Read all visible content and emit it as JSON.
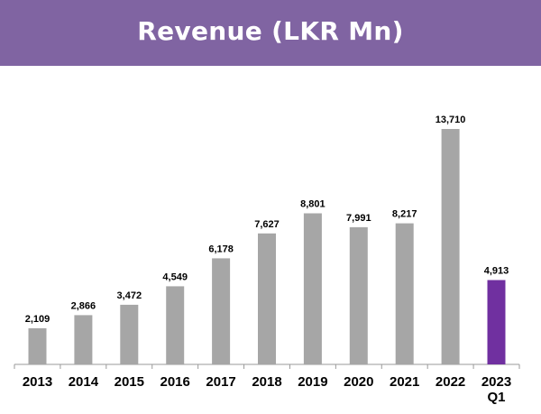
{
  "chart_data": {
    "type": "bar",
    "title": "Revenue (LKR Mn)",
    "categories": [
      [
        "2013"
      ],
      [
        "2014"
      ],
      [
        "2015"
      ],
      [
        "2016"
      ],
      [
        "2017"
      ],
      [
        "2018"
      ],
      [
        "2019"
      ],
      [
        "2020"
      ],
      [
        "2021"
      ],
      [
        "2022"
      ],
      [
        "2023",
        "Q1"
      ]
    ],
    "values": [
      2109,
      2866,
      3472,
      4549,
      6178,
      7627,
      8801,
      7991,
      8217,
      13710,
      4913
    ],
    "value_labels": [
      "2,109",
      "2,866",
      "3,472",
      "4,549",
      "6,178",
      "7,627",
      "8,801",
      "7,991",
      "8,217",
      "13,710",
      "4,913"
    ],
    "bar_colors": [
      "#a6a6a6",
      "#a6a6a6",
      "#a6a6a6",
      "#a6a6a6",
      "#a6a6a6",
      "#a6a6a6",
      "#a6a6a6",
      "#a6a6a6",
      "#a6a6a6",
      "#a6a6a6",
      "#7030a0"
    ],
    "ylim": [
      0,
      14600
    ],
    "grid": false,
    "legend": "none",
    "title_banner_color": "#8064a2"
  }
}
